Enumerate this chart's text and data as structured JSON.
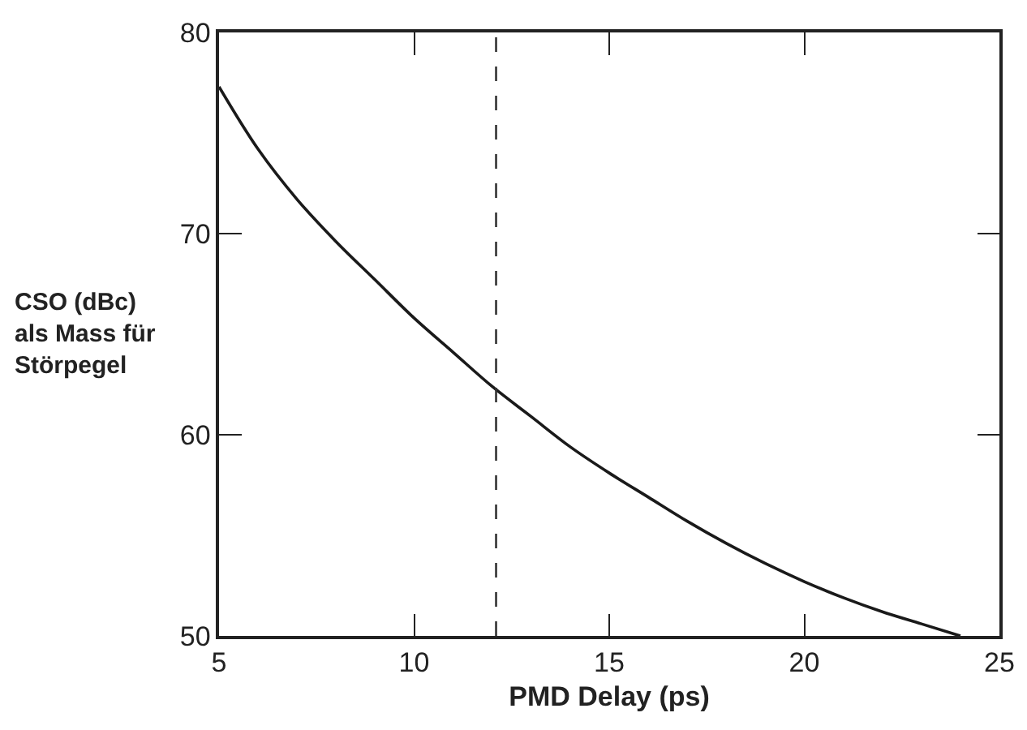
{
  "chart_data": {
    "type": "line",
    "xlabel": "PMD Delay (ps)",
    "ylabel": "CSO (dBc)\nals Mass für\nStörpegel",
    "x": [
      5,
      6,
      7,
      8,
      9,
      10,
      11,
      12,
      13,
      14,
      15,
      16,
      17,
      18,
      19,
      20,
      21,
      22,
      23,
      24
    ],
    "series": [
      {
        "color": "#1a1a1a",
        "values": [
          77.3,
          74.2,
          71.7,
          69.6,
          67.7,
          65.8,
          64.1,
          62.4,
          60.9,
          59.4,
          58.1,
          56.9,
          55.7,
          54.6,
          53.6,
          52.7,
          51.9,
          51.2,
          50.6,
          50.0
        ]
      }
    ],
    "xlim": [
      5,
      25
    ],
    "xticks": [
      5,
      10,
      15,
      20,
      25
    ],
    "ylim": [
      50,
      80
    ],
    "yticks": [
      50,
      60,
      70,
      80
    ],
    "ref_lines": [
      {
        "axis": "x",
        "value": 12.1,
        "color": "#333333",
        "line_style": "dashed"
      }
    ],
    "marker": "none",
    "line_style": "solid"
  }
}
